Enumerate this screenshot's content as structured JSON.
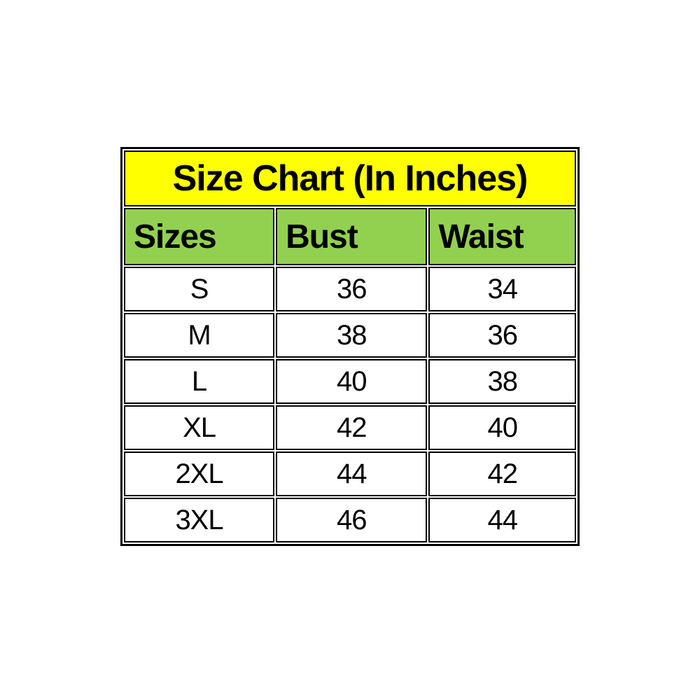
{
  "chart_data": {
    "type": "table",
    "title": "Size Chart (In Inches)",
    "columns": [
      "Sizes",
      "Bust",
      "Waist"
    ],
    "rows": [
      [
        "S",
        "36",
        "34"
      ],
      [
        "M",
        "38",
        "36"
      ],
      [
        "L",
        "40",
        "38"
      ],
      [
        "XL",
        "42",
        "40"
      ],
      [
        "2XL",
        "44",
        "42"
      ],
      [
        "3XL",
        "46",
        "44"
      ]
    ]
  },
  "table": {
    "title": "Size Chart (In Inches)",
    "headers": {
      "sizes": "Sizes",
      "bust": "Bust",
      "waist": "Waist"
    },
    "rows": [
      [
        "S",
        "36",
        "34"
      ],
      [
        "M",
        "38",
        "36"
      ],
      [
        "L",
        "40",
        "38"
      ],
      [
        "XL",
        "42",
        "40"
      ],
      [
        "2XL",
        "44",
        "42"
      ],
      [
        "3XL",
        "46",
        "44"
      ]
    ],
    "colors": {
      "title_bg": "#ffff00",
      "header_bg": "#92d050",
      "border": "#000000",
      "text": "#000000",
      "page_bg": "#ffffff"
    }
  }
}
